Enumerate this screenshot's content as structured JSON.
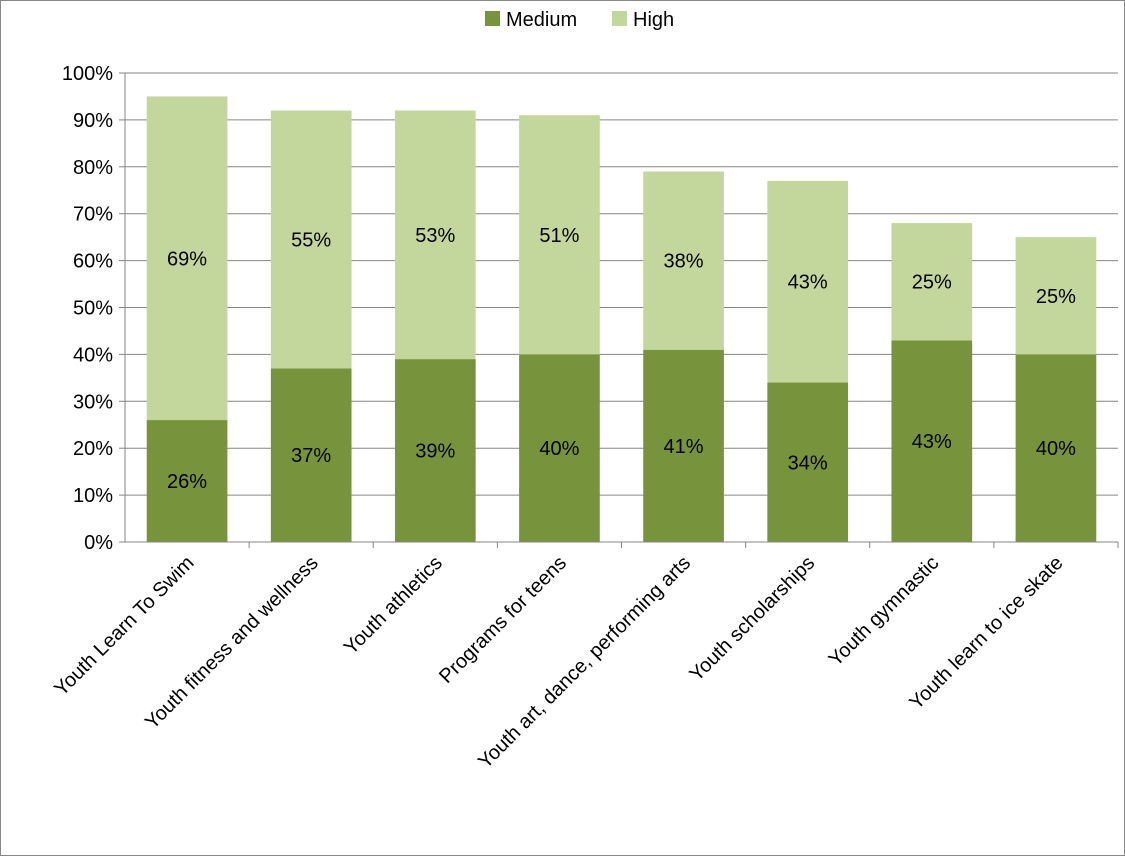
{
  "chart_data": {
    "type": "bar",
    "stacked": true,
    "categories": [
      "Youth Learn To Swim",
      "Youth fitness and wellness",
      "Youth athletics",
      "Programs for teens",
      "Youth art, dance, performing arts",
      "Youth scholarships",
      "Youth gymnastic",
      "Youth learn to ice skate"
    ],
    "series": [
      {
        "name": "Medium",
        "color": "#77933C",
        "values": [
          26,
          37,
          39,
          40,
          41,
          34,
          43,
          40
        ],
        "labels": [
          "26%",
          "37%",
          "39%",
          "40%",
          "41%",
          "34%",
          "43%",
          "40%"
        ]
      },
      {
        "name": "High",
        "color": "#C3D69B",
        "values": [
          69,
          55,
          53,
          51,
          38,
          43,
          25,
          25
        ],
        "labels": [
          "69%",
          "55%",
          "53%",
          "51%",
          "38%",
          "43%",
          "25%",
          "25%"
        ]
      }
    ],
    "ylim": [
      0,
      100
    ],
    "yticks": [
      "0%",
      "10%",
      "20%",
      "30%",
      "40%",
      "50%",
      "60%",
      "70%",
      "80%",
      "90%",
      "100%"
    ],
    "grid": true,
    "legend_position": "top"
  }
}
